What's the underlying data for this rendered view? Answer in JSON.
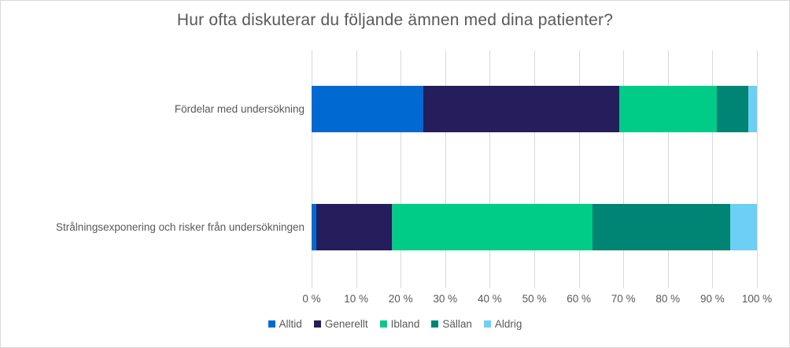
{
  "title": "Hur ofta diskuterar du följande ämnen med dina patienter?",
  "colors": {
    "grid": "#d9d9d9",
    "border": "#d9d9d9",
    "text": "#595959",
    "background": "#ffffff"
  },
  "chart_data": {
    "type": "bar",
    "orientation": "horizontal",
    "stacked": true,
    "title": "Hur ofta diskuterar du följande ämnen med dina patienter?",
    "categories": [
      "Fördelar med undersökning",
      "Strålningsexponering och risker från undersökningen"
    ],
    "series": [
      {
        "name": "Alltid",
        "color": "#0069d2",
        "values": [
          25,
          1
        ]
      },
      {
        "name": "Generellt",
        "color": "#261d5c",
        "values": [
          44,
          17
        ]
      },
      {
        "name": "Ibland",
        "color": "#00cc87",
        "values": [
          22,
          45
        ]
      },
      {
        "name": "Sällan",
        "color": "#008575",
        "values": [
          7,
          31
        ]
      },
      {
        "name": "Aldrig",
        "color": "#6dcff6",
        "values": [
          2,
          6
        ]
      }
    ],
    "xlim": [
      0,
      100
    ],
    "x_ticks": [
      "0 %",
      "10 %",
      "20 %",
      "30 %",
      "40 %",
      "50 %",
      "60 %",
      "70 %",
      "80 %",
      "90 %",
      "100 %"
    ],
    "grid": true,
    "legend_position": "bottom"
  }
}
